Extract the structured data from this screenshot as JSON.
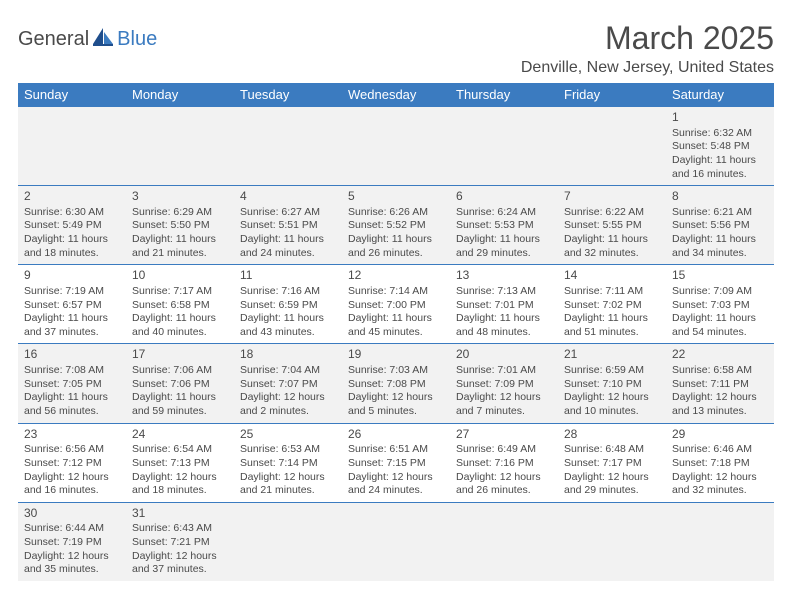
{
  "logo": {
    "general": "General",
    "blue": "Blue"
  },
  "title": "March 2025",
  "location": "Denville, New Jersey, United States",
  "colors": {
    "header_bg": "#3b7bc0",
    "text": "#4a4a4a",
    "alt_row": "#f2f2f2"
  },
  "day_headers": [
    "Sunday",
    "Monday",
    "Tuesday",
    "Wednesday",
    "Thursday",
    "Friday",
    "Saturday"
  ],
  "weeks": [
    [
      null,
      null,
      null,
      null,
      null,
      null,
      {
        "n": "1",
        "sr": "6:32 AM",
        "ss": "5:48 PM",
        "dl": "11 hours and 16 minutes."
      }
    ],
    [
      {
        "n": "2",
        "sr": "6:30 AM",
        "ss": "5:49 PM",
        "dl": "11 hours and 18 minutes."
      },
      {
        "n": "3",
        "sr": "6:29 AM",
        "ss": "5:50 PM",
        "dl": "11 hours and 21 minutes."
      },
      {
        "n": "4",
        "sr": "6:27 AM",
        "ss": "5:51 PM",
        "dl": "11 hours and 24 minutes."
      },
      {
        "n": "5",
        "sr": "6:26 AM",
        "ss": "5:52 PM",
        "dl": "11 hours and 26 minutes."
      },
      {
        "n": "6",
        "sr": "6:24 AM",
        "ss": "5:53 PM",
        "dl": "11 hours and 29 minutes."
      },
      {
        "n": "7",
        "sr": "6:22 AM",
        "ss": "5:55 PM",
        "dl": "11 hours and 32 minutes."
      },
      {
        "n": "8",
        "sr": "6:21 AM",
        "ss": "5:56 PM",
        "dl": "11 hours and 34 minutes."
      }
    ],
    [
      {
        "n": "9",
        "sr": "7:19 AM",
        "ss": "6:57 PM",
        "dl": "11 hours and 37 minutes."
      },
      {
        "n": "10",
        "sr": "7:17 AM",
        "ss": "6:58 PM",
        "dl": "11 hours and 40 minutes."
      },
      {
        "n": "11",
        "sr": "7:16 AM",
        "ss": "6:59 PM",
        "dl": "11 hours and 43 minutes."
      },
      {
        "n": "12",
        "sr": "7:14 AM",
        "ss": "7:00 PM",
        "dl": "11 hours and 45 minutes."
      },
      {
        "n": "13",
        "sr": "7:13 AM",
        "ss": "7:01 PM",
        "dl": "11 hours and 48 minutes."
      },
      {
        "n": "14",
        "sr": "7:11 AM",
        "ss": "7:02 PM",
        "dl": "11 hours and 51 minutes."
      },
      {
        "n": "15",
        "sr": "7:09 AM",
        "ss": "7:03 PM",
        "dl": "11 hours and 54 minutes."
      }
    ],
    [
      {
        "n": "16",
        "sr": "7:08 AM",
        "ss": "7:05 PM",
        "dl": "11 hours and 56 minutes."
      },
      {
        "n": "17",
        "sr": "7:06 AM",
        "ss": "7:06 PM",
        "dl": "11 hours and 59 minutes."
      },
      {
        "n": "18",
        "sr": "7:04 AM",
        "ss": "7:07 PM",
        "dl": "12 hours and 2 minutes."
      },
      {
        "n": "19",
        "sr": "7:03 AM",
        "ss": "7:08 PM",
        "dl": "12 hours and 5 minutes."
      },
      {
        "n": "20",
        "sr": "7:01 AM",
        "ss": "7:09 PM",
        "dl": "12 hours and 7 minutes."
      },
      {
        "n": "21",
        "sr": "6:59 AM",
        "ss": "7:10 PM",
        "dl": "12 hours and 10 minutes."
      },
      {
        "n": "22",
        "sr": "6:58 AM",
        "ss": "7:11 PM",
        "dl": "12 hours and 13 minutes."
      }
    ],
    [
      {
        "n": "23",
        "sr": "6:56 AM",
        "ss": "7:12 PM",
        "dl": "12 hours and 16 minutes."
      },
      {
        "n": "24",
        "sr": "6:54 AM",
        "ss": "7:13 PM",
        "dl": "12 hours and 18 minutes."
      },
      {
        "n": "25",
        "sr": "6:53 AM",
        "ss": "7:14 PM",
        "dl": "12 hours and 21 minutes."
      },
      {
        "n": "26",
        "sr": "6:51 AM",
        "ss": "7:15 PM",
        "dl": "12 hours and 24 minutes."
      },
      {
        "n": "27",
        "sr": "6:49 AM",
        "ss": "7:16 PM",
        "dl": "12 hours and 26 minutes."
      },
      {
        "n": "28",
        "sr": "6:48 AM",
        "ss": "7:17 PM",
        "dl": "12 hours and 29 minutes."
      },
      {
        "n": "29",
        "sr": "6:46 AM",
        "ss": "7:18 PM",
        "dl": "12 hours and 32 minutes."
      }
    ],
    [
      {
        "n": "30",
        "sr": "6:44 AM",
        "ss": "7:19 PM",
        "dl": "12 hours and 35 minutes."
      },
      {
        "n": "31",
        "sr": "6:43 AM",
        "ss": "7:21 PM",
        "dl": "12 hours and 37 minutes."
      },
      null,
      null,
      null,
      null,
      null
    ]
  ],
  "labels": {
    "sunrise": "Sunrise:",
    "sunset": "Sunset:",
    "daylight": "Daylight:"
  }
}
